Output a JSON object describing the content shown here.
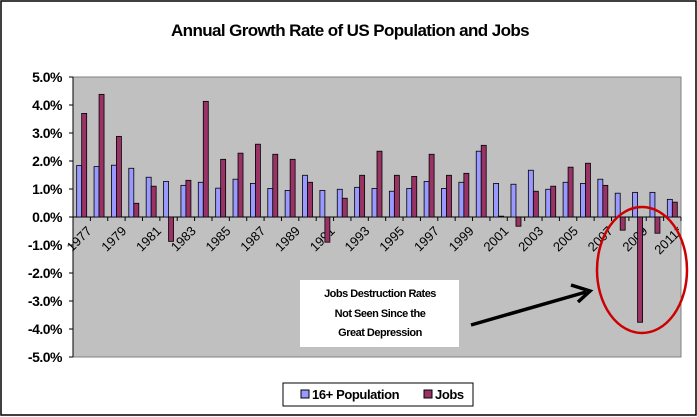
{
  "chart_data": {
    "type": "bar",
    "title": "Annual Growth Rate of US Population and Jobs",
    "xlabel": "",
    "ylabel": "",
    "ylim": [
      -5.0,
      5.0
    ],
    "yticks": [
      5.0,
      4.0,
      3.0,
      2.0,
      1.0,
      0.0,
      -1.0,
      -2.0,
      -3.0,
      -4.0,
      -5.0
    ],
    "ytick_labels": [
      "5.0%",
      "4.0%",
      "3.0%",
      "2.0%",
      "1.0%",
      "0.0%",
      "-1.0%",
      "-2.0%",
      "-3.0%",
      "-4.0%",
      "-5.0%"
    ],
    "grid": false,
    "legend_position": "bottom",
    "categories": [
      "1977",
      "1978",
      "1979",
      "1980",
      "1981",
      "1982",
      "1983",
      "1984",
      "1985",
      "1986",
      "1987",
      "1988",
      "1989",
      "1990",
      "1991",
      "1992",
      "1993",
      "1994",
      "1995",
      "1996",
      "1997",
      "1998",
      "1999",
      "2000",
      "2001",
      "2002",
      "2003",
      "2004",
      "2005",
      "2006",
      "2007",
      "2008",
      "2009",
      "2010",
      "2011*"
    ],
    "xtick_labels": [
      "1977",
      "",
      "1979",
      "",
      "1981",
      "",
      "1983",
      "",
      "1985",
      "",
      "1987",
      "",
      "1989",
      "",
      "1991",
      "",
      "1993",
      "",
      "1995",
      "",
      "1997",
      "",
      "1999",
      "",
      "2001",
      "",
      "2003",
      "",
      "2005",
      "",
      "2007",
      "",
      "2009",
      "",
      "2011*"
    ],
    "series": [
      {
        "name": "16+ Population",
        "color": "#9999FF",
        "values": [
          1.84,
          1.8,
          1.85,
          1.74,
          1.42,
          1.27,
          1.13,
          1.24,
          1.03,
          1.35,
          1.2,
          1.02,
          0.95,
          1.49,
          0.95,
          0.99,
          1.06,
          1.02,
          0.92,
          1.02,
          1.27,
          1.02,
          1.24,
          2.35,
          1.2,
          1.17,
          1.67,
          0.99,
          1.24,
          1.2,
          1.35,
          0.85,
          0.88,
          0.88,
          0.63
        ]
      },
      {
        "name": "Jobs",
        "color": "#993366",
        "values": [
          3.7,
          4.38,
          2.88,
          0.49,
          1.1,
          -0.87,
          1.31,
          4.13,
          2.06,
          2.28,
          2.6,
          2.24,
          2.06,
          1.24,
          -0.9,
          0.67,
          1.49,
          2.35,
          1.49,
          1.45,
          2.24,
          1.49,
          1.56,
          2.56,
          0.03,
          -0.33,
          0.92,
          1.1,
          1.78,
          1.92,
          1.13,
          -0.47,
          -3.76,
          -0.58,
          0.53
        ]
      }
    ],
    "annotation": {
      "lines": [
        "Jobs Destruction Rates",
        "Not Seen Since the",
        "Great Depression"
      ],
      "highlight_color": "#CC0000",
      "highlight_categories": [
        "2008",
        "2009",
        "2010",
        "2011*"
      ]
    },
    "plot_background": "#C0C0C0"
  }
}
